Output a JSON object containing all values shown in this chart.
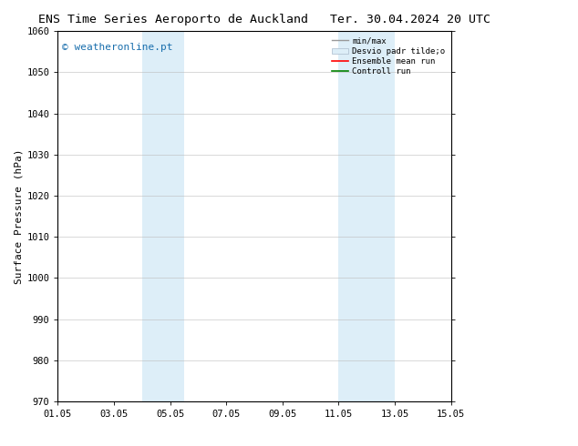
{
  "title_left": "ENS Time Series Aeroporto de Auckland",
  "title_right": "Ter. 30.04.2024 20 UTC",
  "ylabel": "Surface Pressure (hPa)",
  "xlim": [
    0,
    14
  ],
  "ylim": [
    970,
    1060
  ],
  "yticks": [
    970,
    980,
    990,
    1000,
    1010,
    1020,
    1030,
    1040,
    1050,
    1060
  ],
  "xtick_labels": [
    "01.05",
    "03.05",
    "05.05",
    "07.05",
    "09.05",
    "11.05",
    "13.05",
    "15.05"
  ],
  "xtick_positions": [
    0,
    2,
    4,
    6,
    8,
    10,
    12,
    14
  ],
  "shaded_bands": [
    {
      "xmin": 3.0,
      "xmax": 4.5
    },
    {
      "xmin": 10.0,
      "xmax": 12.0
    }
  ],
  "shaded_color": "#ddeef8",
  "watermark_text": "© weatheronline.pt",
  "watermark_color": "#1a6fad",
  "bg_color": "#ffffff",
  "grid_color": "#bbbbbb",
  "title_fontsize": 9.5,
  "axis_fontsize": 8,
  "tick_fontsize": 7.5,
  "watermark_fontsize": 8
}
